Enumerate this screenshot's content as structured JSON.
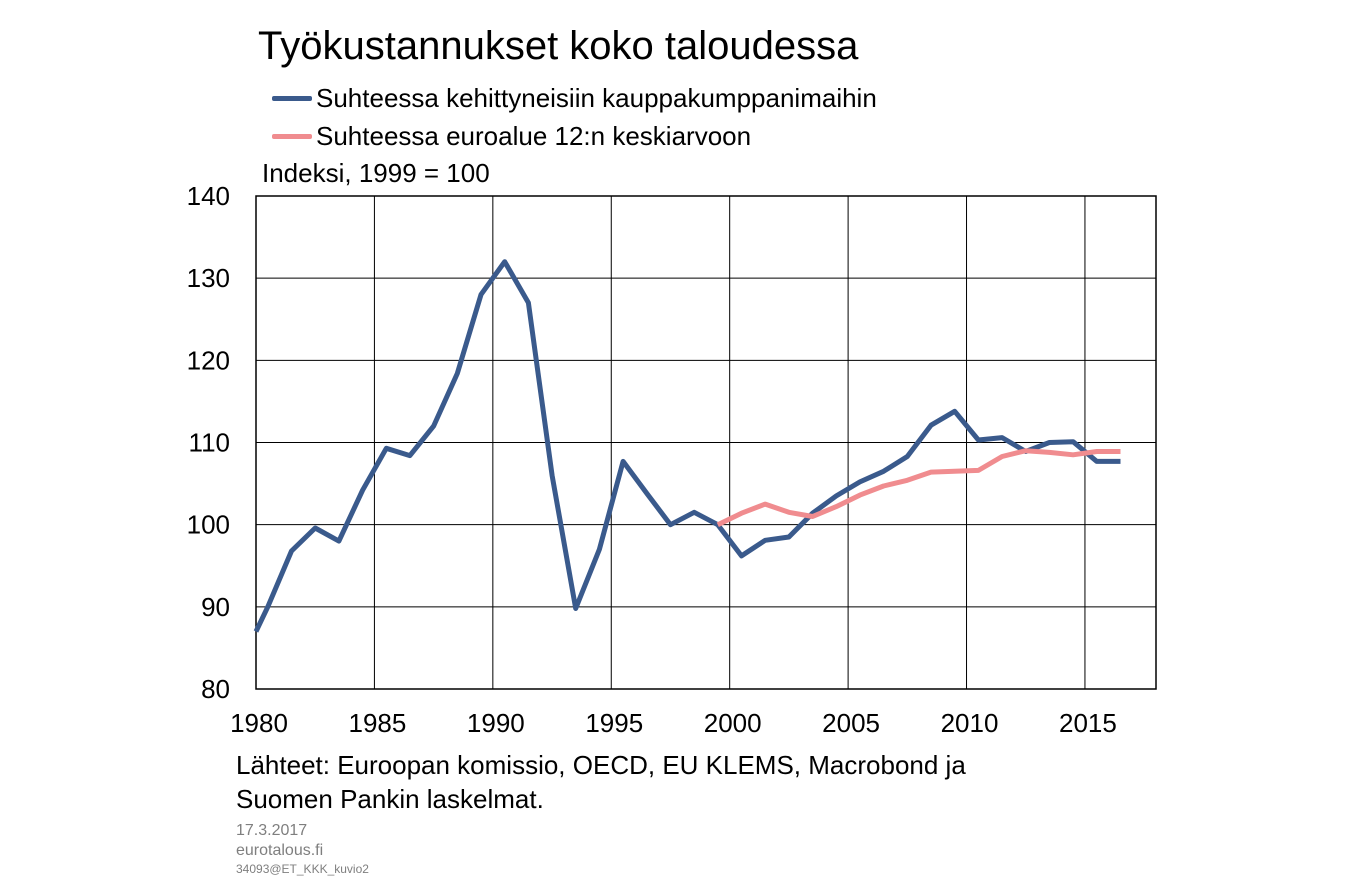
{
  "header": {
    "title": "Työkustannukset koko taloudessa",
    "unit_label": "Indeksi, 1999 = 100"
  },
  "source": {
    "line1": "Lähteet: Euroopan komissio, OECD, EU KLEMS, Macrobond ja",
    "line2": "Suomen Pankin laskelmat."
  },
  "footer": {
    "date": "17.3.2017",
    "site": "eurotalous.fi",
    "code": "34093@ET_KKK_kuvio2"
  },
  "chart_data": {
    "type": "line",
    "title": "Työkustannukset koko taloudessa",
    "ylabel": "Indeksi, 1999 = 100",
    "xlim": [
      1980,
      2018
    ],
    "ylim": [
      80,
      140
    ],
    "x_ticks": [
      "1980",
      "1985",
      "1990",
      "1995",
      "2000",
      "2005",
      "2010",
      "2015"
    ],
    "y_ticks": [
      "80",
      "90",
      "100",
      "110",
      "120",
      "130",
      "140"
    ],
    "grid": true,
    "legend_position": "top",
    "series": [
      {
        "name": "Suhteessa kehittyneisiin kauppakumppanimaihin",
        "color": "#3a5a8c",
        "points": [
          [
            1980,
            87.0
          ],
          [
            1980.5,
            90.0
          ],
          [
            1981.5,
            96.8
          ],
          [
            1982.5,
            99.6
          ],
          [
            1983.5,
            98.0
          ],
          [
            1984.5,
            104.2
          ],
          [
            1985.5,
            109.3
          ],
          [
            1986.5,
            108.4
          ],
          [
            1987.5,
            112.0
          ],
          [
            1988.5,
            118.4
          ],
          [
            1989.5,
            128.0
          ],
          [
            1990.5,
            132.0
          ],
          [
            1991.5,
            127.0
          ],
          [
            1992.5,
            106.0
          ],
          [
            1993.5,
            89.8
          ],
          [
            1994.5,
            97.0
          ],
          [
            1995.5,
            107.7
          ],
          [
            1996.5,
            103.8
          ],
          [
            1997.5,
            100.0
          ],
          [
            1998.5,
            101.5
          ],
          [
            1999.5,
            100.0
          ],
          [
            2000.5,
            96.2
          ],
          [
            2001.5,
            98.1
          ],
          [
            2002.5,
            98.5
          ],
          [
            2003.5,
            101.4
          ],
          [
            2004.5,
            103.5
          ],
          [
            2005.5,
            105.2
          ],
          [
            2006.5,
            106.5
          ],
          [
            2007.5,
            108.3
          ],
          [
            2008.5,
            112.1
          ],
          [
            2009.5,
            113.8
          ],
          [
            2010.5,
            110.3
          ],
          [
            2011.5,
            110.6
          ],
          [
            2012.5,
            108.9
          ],
          [
            2013.5,
            110.0
          ],
          [
            2014.5,
            110.1
          ],
          [
            2015.5,
            107.7
          ],
          [
            2016.5,
            107.7
          ]
        ]
      },
      {
        "name": "Suhteessa euroalue 12:n keskiarvoon",
        "color": "#f08c8f",
        "points": [
          [
            1999.5,
            100.0
          ],
          [
            2000.5,
            101.4
          ],
          [
            2001.5,
            102.5
          ],
          [
            2002.5,
            101.5
          ],
          [
            2003.5,
            101.0
          ],
          [
            2004.5,
            102.2
          ],
          [
            2005.5,
            103.6
          ],
          [
            2006.5,
            104.7
          ],
          [
            2007.5,
            105.4
          ],
          [
            2008.5,
            106.4
          ],
          [
            2009.5,
            106.5
          ],
          [
            2010.5,
            106.6
          ],
          [
            2011.5,
            108.3
          ],
          [
            2012.5,
            109.0
          ],
          [
            2013.5,
            108.8
          ],
          [
            2014.5,
            108.5
          ],
          [
            2015.5,
            108.9
          ],
          [
            2016.5,
            108.9
          ]
        ]
      }
    ]
  }
}
